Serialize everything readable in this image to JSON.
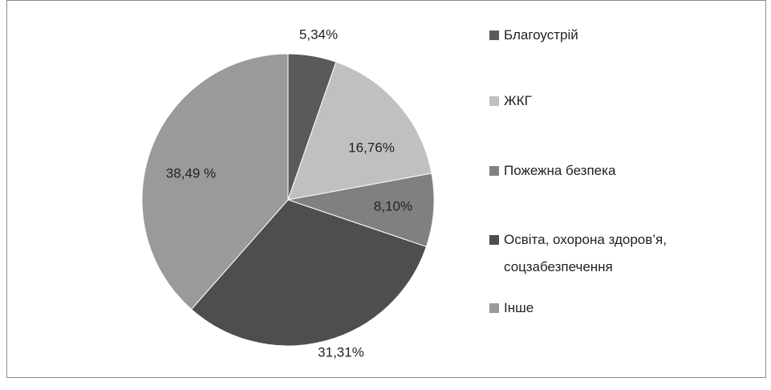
{
  "chart_data": {
    "type": "pie",
    "categories": [
      "Благоустрій",
      "ЖКГ",
      "Пожежна безпека",
      "Освіта, охорона здоров’я, соцзабезпечення",
      "Інше"
    ],
    "values": [
      5.34,
      16.76,
      8.1,
      31.31,
      38.49
    ],
    "value_labels": [
      "5,34%",
      "16,76%",
      "8,10%",
      "31,31%",
      "38,49 %"
    ],
    "colors": [
      "#5a5a5a",
      "#c0c0c0",
      "#808080",
      "#4e4e4e",
      "#9a9a9a"
    ],
    "legend": "right"
  }
}
